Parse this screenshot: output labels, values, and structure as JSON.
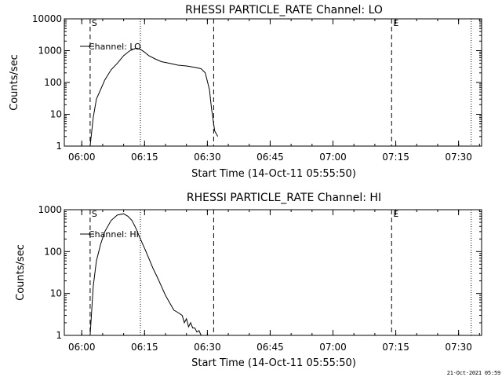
{
  "footer_timestamp": "21-Oct-2021 05:59",
  "chart_data": [
    {
      "type": "line",
      "title": "RHESSI PARTICLE_RATE Channel: LO",
      "xlabel": "Start Time (14-Oct-11 05:55:50)",
      "ylabel": "Counts/sec",
      "legend": "Channel: LO",
      "legend_position": "top-left",
      "y_scale": "log",
      "ylim": [
        1,
        10000
      ],
      "yticks": [
        "1",
        "10",
        "100",
        "1000",
        "10000"
      ],
      "xlim": [
        "05:55:50",
        "07:35:30"
      ],
      "xticks": [
        "06:00",
        "06:15",
        "06:30",
        "06:45",
        "07:00",
        "07:15",
        "07:30"
      ],
      "markers": [
        {
          "time": "06:02:00",
          "style": "dashed",
          "label": "S"
        },
        {
          "time": "06:31:30",
          "style": "dashed",
          "label": ""
        },
        {
          "time": "07:14:00",
          "style": "dashed",
          "label": "E"
        },
        {
          "time": "06:14:00",
          "style": "dotted",
          "label": ""
        },
        {
          "time": "07:33:00",
          "style": "dotted",
          "label": ""
        }
      ],
      "series": [
        {
          "name": "Channel: LO",
          "x": [
            "06:02:00",
            "06:02:45",
            "06:03:30",
            "06:04:30",
            "06:05:30",
            "06:07:00",
            "06:08:30",
            "06:10:00",
            "06:11:30",
            "06:13:00",
            "06:14:00",
            "06:15:00",
            "06:16:00",
            "06:17:30",
            "06:19:00",
            "06:21:00",
            "06:23:00",
            "06:25:00",
            "06:27:00",
            "06:28:30",
            "06:29:30",
            "06:30:30",
            "06:31:00",
            "06:31:45",
            "06:32:30"
          ],
          "y": [
            1,
            8,
            30,
            60,
            120,
            250,
            400,
            700,
            1000,
            1200,
            1100,
            900,
            700,
            550,
            450,
            400,
            350,
            330,
            300,
            270,
            200,
            60,
            15,
            3,
            2
          ]
        }
      ]
    },
    {
      "type": "line",
      "title": "RHESSI PARTICLE_RATE Channel: HI",
      "xlabel": "Start Time (14-Oct-11 05:55:50)",
      "ylabel": "Counts/sec",
      "legend": "Channel: HI",
      "legend_position": "top-left",
      "y_scale": "log",
      "ylim": [
        1,
        1000
      ],
      "yticks": [
        "1",
        "10",
        "100",
        "1000"
      ],
      "xlim": [
        "05:55:50",
        "07:35:30"
      ],
      "xticks": [
        "06:00",
        "06:15",
        "06:30",
        "06:45",
        "07:00",
        "07:15",
        "07:30"
      ],
      "markers": [
        {
          "time": "06:02:00",
          "style": "dashed",
          "label": "S"
        },
        {
          "time": "06:31:30",
          "style": "dashed",
          "label": ""
        },
        {
          "time": "07:14:00",
          "style": "dashed",
          "label": "E"
        },
        {
          "time": "06:14:00",
          "style": "dotted",
          "label": ""
        },
        {
          "time": "07:33:00",
          "style": "dotted",
          "label": ""
        }
      ],
      "series": [
        {
          "name": "Channel: HI",
          "x": [
            "06:02:00",
            "06:02:45",
            "06:03:30",
            "06:04:30",
            "06:05:30",
            "06:07:00",
            "06:08:30",
            "06:10:00",
            "06:11:00",
            "06:12:00",
            "06:13:00",
            "06:14:00",
            "06:15:00",
            "06:16:00",
            "06:17:00",
            "06:18:00",
            "06:19:00",
            "06:20:00",
            "06:21:00",
            "06:22:00",
            "06:23:00",
            "06:24:00",
            "06:24:30",
            "06:25:00",
            "06:25:30",
            "06:26:00",
            "06:26:30",
            "06:27:00",
            "06:27:30",
            "06:28:00",
            "06:28:30",
            "06:29:00",
            "06:29:30"
          ],
          "y": [
            1,
            15,
            60,
            150,
            300,
            550,
            750,
            800,
            700,
            550,
            350,
            200,
            120,
            70,
            40,
            25,
            15,
            9,
            6,
            4,
            3.5,
            3,
            2,
            2.5,
            1.6,
            2,
            1.5,
            1.5,
            1.2,
            1.3,
            1,
            1,
            1
          ]
        }
      ]
    }
  ]
}
